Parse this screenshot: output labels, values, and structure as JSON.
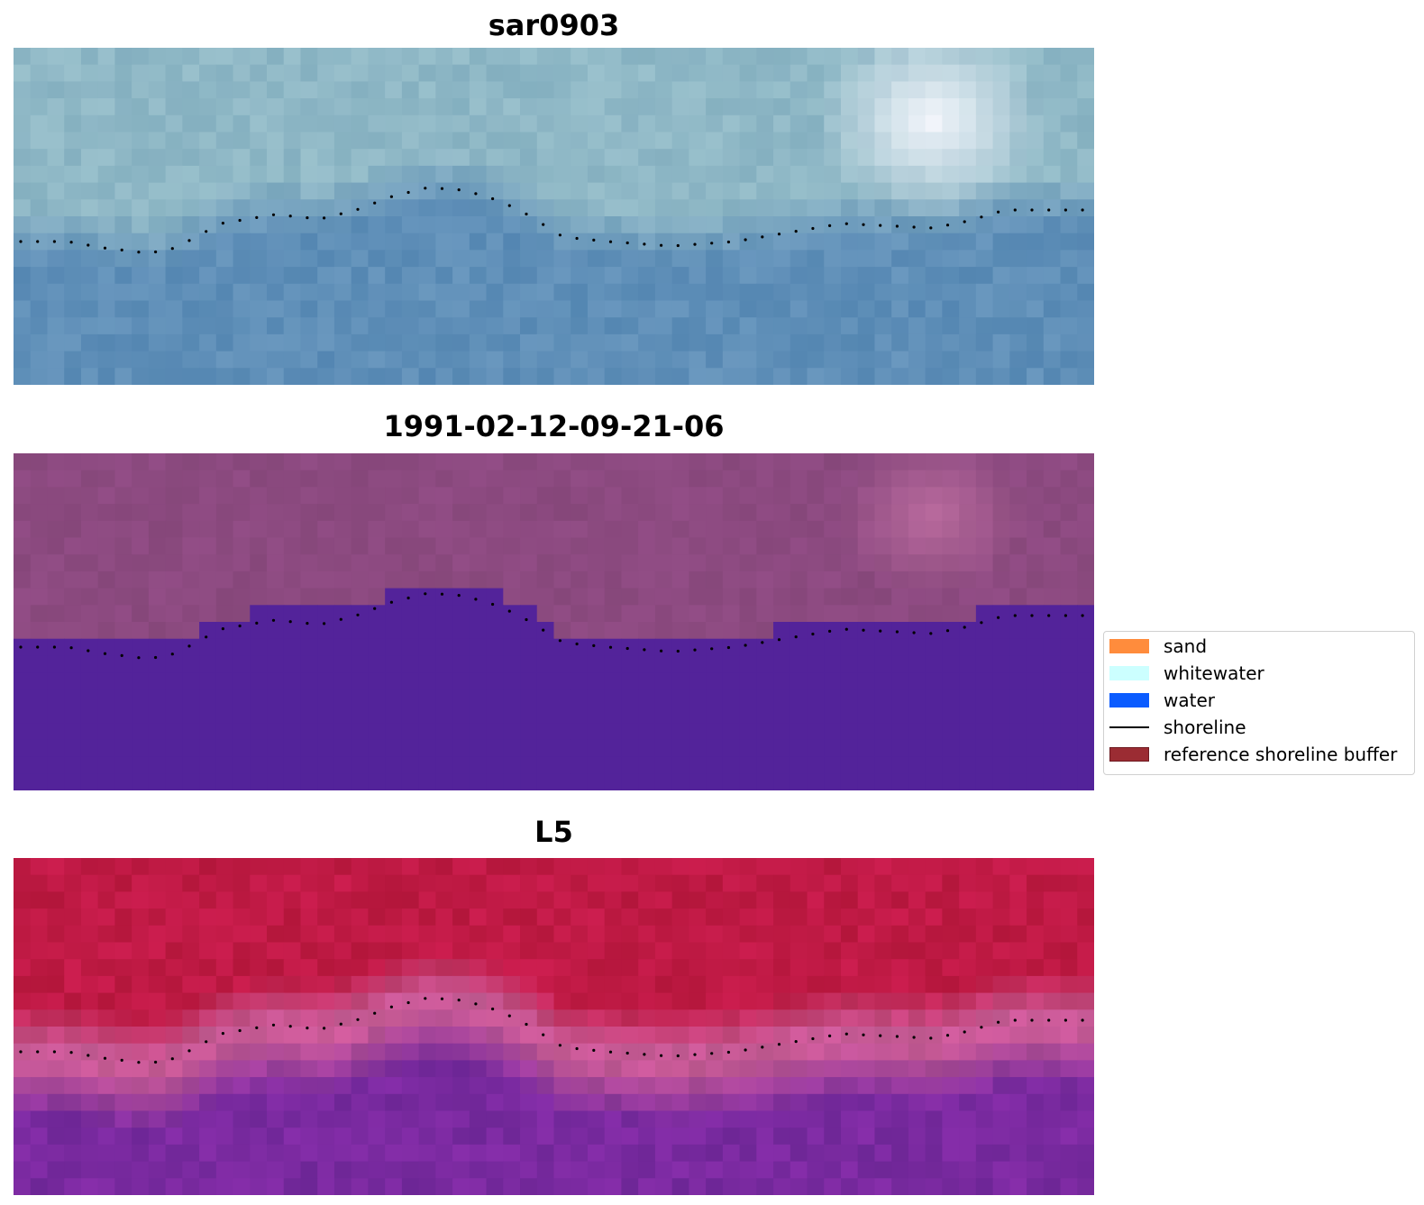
{
  "panels": [
    {
      "title": "sar0903",
      "style": "sar"
    },
    {
      "title": "1991-02-12-09-21-06",
      "style": "classified"
    },
    {
      "title": "L5",
      "style": "false-color"
    }
  ],
  "legend": {
    "items": [
      {
        "label": "sand",
        "color": "#ff8c3c",
        "kind": "patch"
      },
      {
        "label": "whitewater",
        "color": "#ccffff",
        "kind": "patch"
      },
      {
        "label": "water",
        "color": "#0b5cff",
        "kind": "patch"
      },
      {
        "label": "shoreline",
        "color": "#000000",
        "kind": "line"
      },
      {
        "label": "reference shoreline buffer",
        "color": "#9b2c33",
        "kind": "patch",
        "edge": "#6e1a20"
      }
    ]
  },
  "colors": {
    "sar_water": "#5f8fb8",
    "sar_land": "#8fb8c6",
    "classified_land": "#8c4a80",
    "classified_water": "#53239a",
    "l5_land": "#c01a45",
    "l5_water": "#7a2aa0",
    "shoreline_dots": "#000000"
  }
}
